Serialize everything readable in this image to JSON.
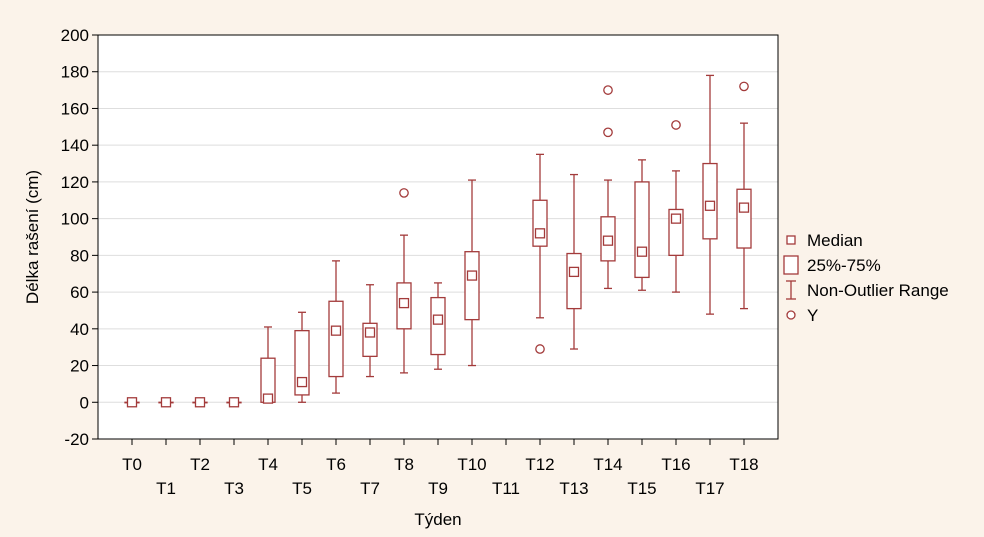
{
  "chart_data": {
    "type": "boxplot",
    "xlabel": "Týden",
    "ylabel": "Délka rašení (cm)",
    "ylim": [
      -20,
      200
    ],
    "yticks": [
      -20,
      0,
      20,
      40,
      60,
      80,
      100,
      120,
      140,
      160,
      180,
      200
    ],
    "grid": true,
    "legend_placement": "right",
    "legend": [
      {
        "key": "median",
        "label": "Median"
      },
      {
        "key": "box",
        "label": "25%-75%"
      },
      {
        "key": "whisker",
        "label": "Non-Outlier Range"
      },
      {
        "key": "outlier",
        "label": "Y"
      }
    ],
    "colors": {
      "series": "#a33b3b",
      "plot_bg": "#ffffff",
      "page_bg": "#fbf3ea",
      "grid": "#dedede"
    },
    "categories": [
      "T0",
      "T1",
      "T2",
      "T3",
      "T4",
      "T5",
      "T6",
      "T7",
      "T8",
      "T9",
      "T10",
      "T11",
      "T12",
      "T13",
      "T14",
      "T15",
      "T16",
      "T17",
      "T18"
    ],
    "boxes": [
      {
        "category": "T0",
        "min": 0,
        "q1": 0,
        "median": 0,
        "q3": 0,
        "max": 0,
        "outliers": []
      },
      {
        "category": "T1",
        "min": 0,
        "q1": 0,
        "median": 0,
        "q3": 0,
        "max": 0,
        "outliers": []
      },
      {
        "category": "T2",
        "min": 0,
        "q1": 0,
        "median": 0,
        "q3": 0,
        "max": 0,
        "outliers": []
      },
      {
        "category": "T3",
        "min": 0,
        "q1": 0,
        "median": 0,
        "q3": 0,
        "max": 0,
        "outliers": []
      },
      {
        "category": "T4",
        "min": 0,
        "q1": 0,
        "median": 2,
        "q3": 24,
        "max": 41,
        "outliers": []
      },
      {
        "category": "T5",
        "min": 0,
        "q1": 4,
        "median": 11,
        "q3": 39,
        "max": 49,
        "outliers": []
      },
      {
        "category": "T6",
        "min": 5,
        "q1": 14,
        "median": 39,
        "q3": 55,
        "max": 77,
        "outliers": []
      },
      {
        "category": "T7",
        "min": 14,
        "q1": 25,
        "median": 38,
        "q3": 43,
        "max": 64,
        "outliers": []
      },
      {
        "category": "T8",
        "min": 16,
        "q1": 40,
        "median": 54,
        "q3": 65,
        "max": 91,
        "outliers": [
          114
        ]
      },
      {
        "category": "T9",
        "min": 18,
        "q1": 26,
        "median": 45,
        "q3": 57,
        "max": 65,
        "outliers": []
      },
      {
        "category": "T10",
        "min": 20,
        "q1": 45,
        "median": 69,
        "q3": 82,
        "max": 121,
        "outliers": []
      },
      {
        "category": "T11",
        "min": null,
        "q1": null,
        "median": null,
        "q3": null,
        "max": null,
        "outliers": []
      },
      {
        "category": "T12",
        "min": 46,
        "q1": 85,
        "median": 92,
        "q3": 110,
        "max": 135,
        "outliers": [
          29
        ]
      },
      {
        "category": "T13",
        "min": 29,
        "q1": 51,
        "median": 71,
        "q3": 81,
        "max": 124,
        "outliers": []
      },
      {
        "category": "T14",
        "min": 62,
        "q1": 77,
        "median": 88,
        "q3": 101,
        "max": 121,
        "outliers": [
          147,
          170
        ]
      },
      {
        "category": "T15",
        "min": 61,
        "q1": 68,
        "median": 82,
        "q3": 120,
        "max": 132,
        "outliers": []
      },
      {
        "category": "T16",
        "min": 60,
        "q1": 80,
        "median": 100,
        "q3": 105,
        "max": 126,
        "outliers": [
          151
        ]
      },
      {
        "category": "T17",
        "min": 48,
        "q1": 89,
        "median": 107,
        "q3": 130,
        "max": 178,
        "outliers": []
      },
      {
        "category": "T18",
        "min": 51,
        "q1": 84,
        "median": 106,
        "q3": 116,
        "max": 152,
        "outliers": [
          172
        ]
      }
    ]
  }
}
